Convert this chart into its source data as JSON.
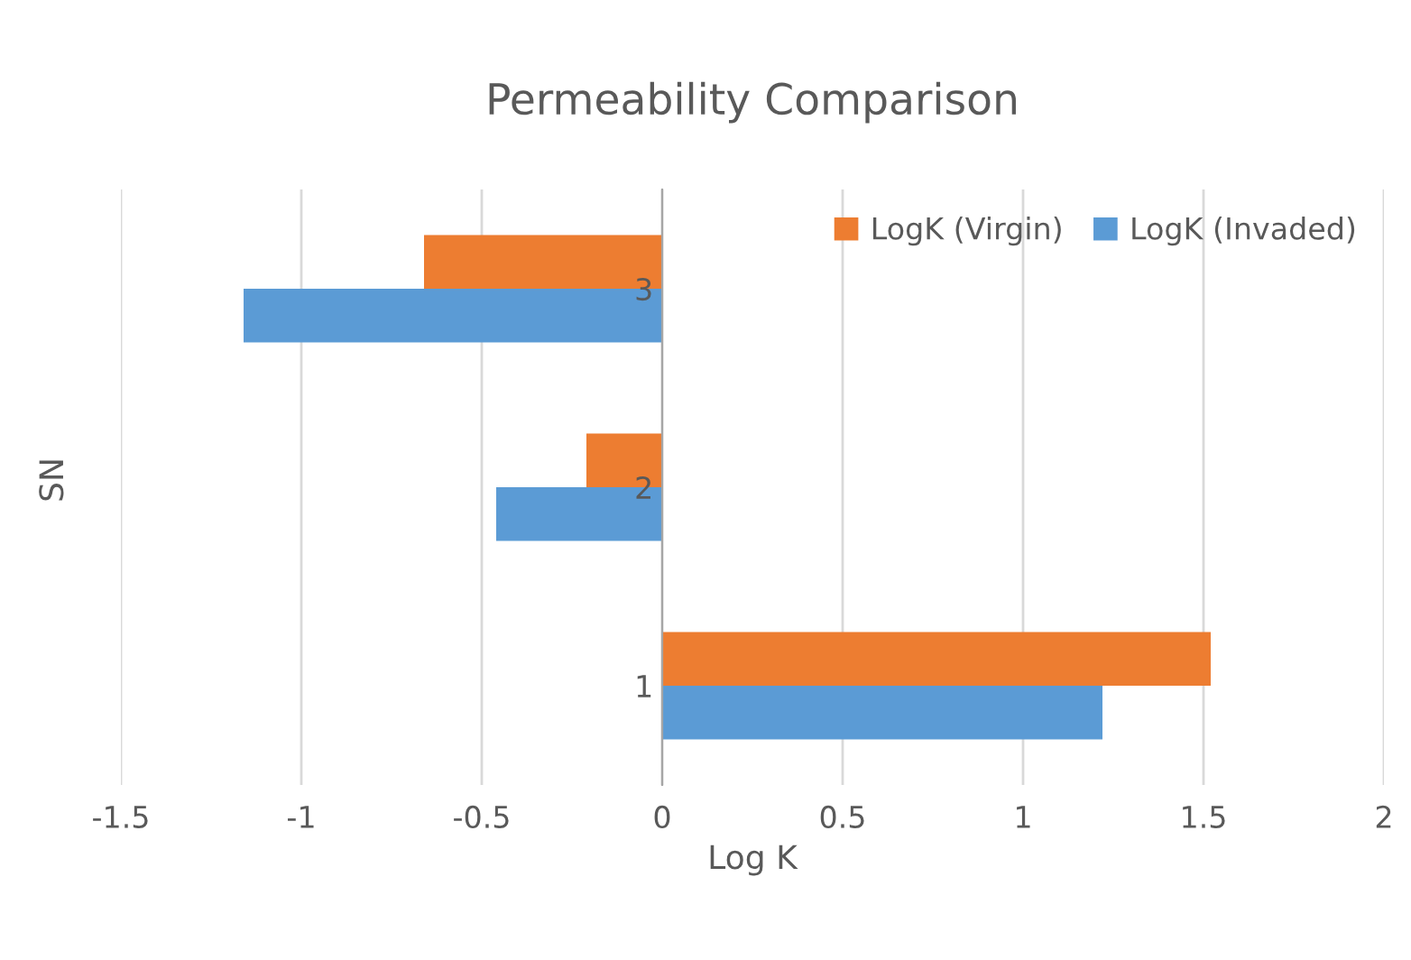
{
  "chart_data": {
    "type": "bar",
    "orientation": "horizontal",
    "title": "Permeability Comparison",
    "xlabel": "Log K",
    "ylabel": "SN",
    "categories": [
      "3",
      "2",
      "1"
    ],
    "series": [
      {
        "name": "LogK (Virgin)",
        "color": "#ed7d31",
        "values": [
          -0.66,
          -0.21,
          1.52
        ]
      },
      {
        "name": "LogK (Invaded)",
        "color": "#5b9bd5",
        "values": [
          -1.16,
          -0.46,
          1.22
        ]
      }
    ],
    "xlim": [
      -1.5,
      2
    ],
    "xticks": [
      -1.5,
      -1,
      -0.5,
      0,
      0.5,
      1,
      1.5,
      2
    ],
    "grid": "x",
    "legend": "top right"
  }
}
